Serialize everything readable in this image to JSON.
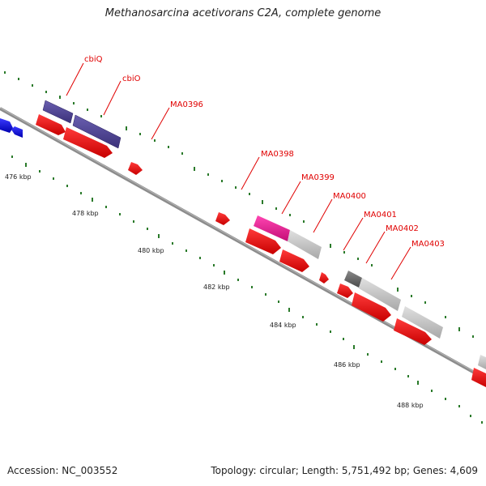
{
  "title": "Methanosarcina acetivorans C2A, complete genome",
  "footer": {
    "accession": "Accession: NC_003552",
    "summary": "Topology: circular; Length: 5,751,492 bp; Genes: 4,609"
  },
  "gene_labels": [
    "cbiQ",
    "cbiO",
    "MA0396",
    "MA0398",
    "MA0399",
    "MA0400",
    "MA0401",
    "MA0402",
    "MA0403"
  ],
  "kbp_labels": [
    "476 kbp",
    "478 kbp",
    "480 kbp",
    "482 kbp",
    "484 kbp",
    "486 kbp",
    "488 kbp"
  ],
  "colors": {
    "backbone": "#8c8c8c",
    "gene_forward": "#ee0000",
    "gene_reverse": "#0000ee",
    "feature_purple": "#4a3f8f",
    "feature_magenta": "#e6178e",
    "feature_grey": "#c8c8c8",
    "feature_dark": "#6a6a6a",
    "tick": "#2a7a2a",
    "label": "#e00000"
  }
}
